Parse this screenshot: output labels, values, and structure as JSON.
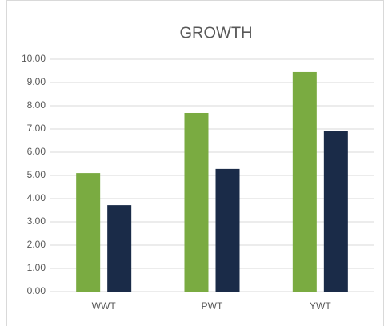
{
  "chart_data": {
    "type": "bar",
    "title": "GROWTH",
    "categories": [
      "WWT",
      "PWT",
      "YWT"
    ],
    "series": [
      {
        "color": "#7aab41",
        "values": [
          5.1,
          7.69,
          9.45
        ]
      },
      {
        "color": "#1a2b48",
        "values": [
          3.72,
          5.28,
          6.93
        ]
      }
    ],
    "ylim": [
      0,
      10
    ],
    "yticks": [
      {
        "value": 0,
        "label": "0.00"
      },
      {
        "value": 1,
        "label": "1.00"
      },
      {
        "value": 2,
        "label": "2.00"
      },
      {
        "value": 3,
        "label": "3.00"
      },
      {
        "value": 4,
        "label": "4.00"
      },
      {
        "value": 5,
        "label": "5.00"
      },
      {
        "value": 6,
        "label": "6.00"
      },
      {
        "value": 7,
        "label": "7.00"
      },
      {
        "value": 8,
        "label": "8.00"
      },
      {
        "value": 9,
        "label": "9.00"
      },
      {
        "value": 10,
        "label": "10.00"
      }
    ],
    "grid": true
  }
}
